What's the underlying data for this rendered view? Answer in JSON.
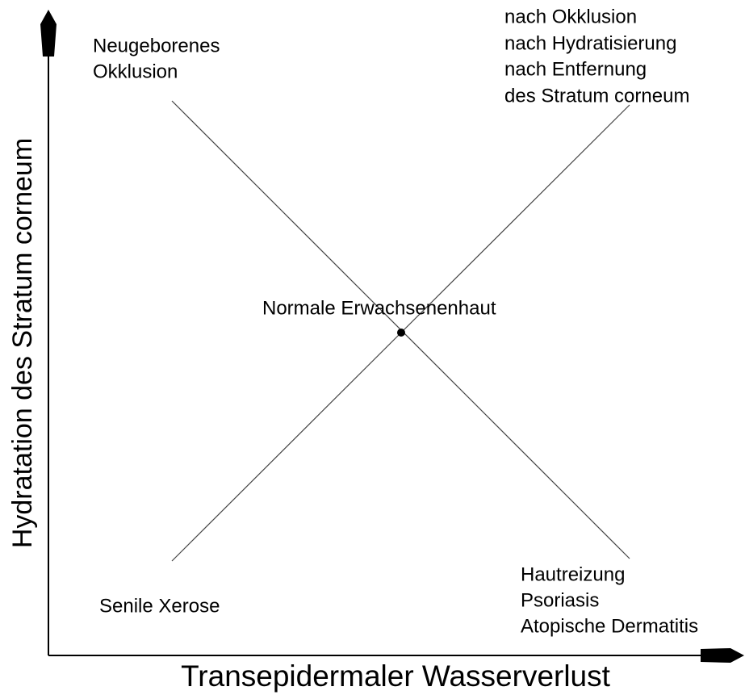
{
  "axes": {
    "x_label": "Transepidermaler Wasserverlust",
    "y_label": "Hydratation des Stratum corneum"
  },
  "labels": {
    "top_left": [
      "Neugeborenes",
      "Okklusion"
    ],
    "top_right": [
      "nach Okklusion",
      "nach Hydratisierung",
      "nach Entfernung",
      "des Stratum corneum"
    ],
    "center": "Normale Erwachsenenhaut",
    "bottom_left": [
      "Senile Xerose"
    ],
    "bottom_right": [
      "Hautreizung",
      "Psoriasis",
      "Atopische Dermatitis"
    ]
  }
}
